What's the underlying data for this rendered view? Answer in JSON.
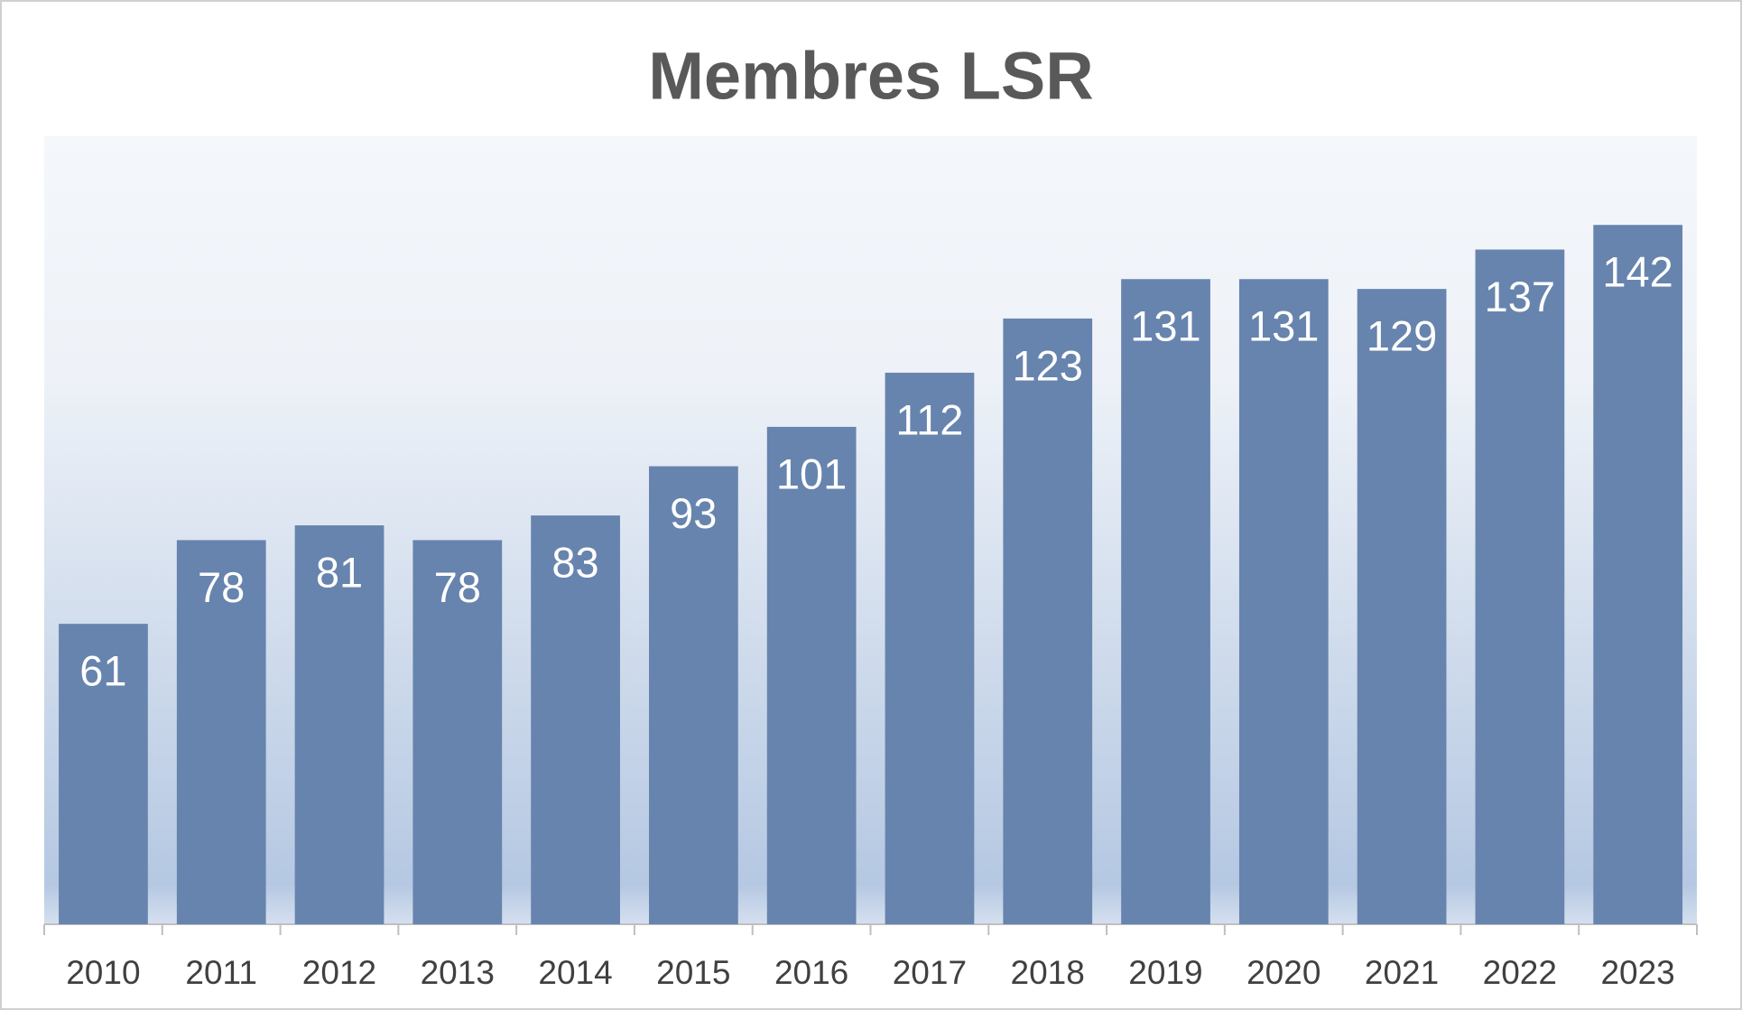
{
  "chart_data": {
    "type": "bar",
    "title": "Membres LSR",
    "categories": [
      "2010",
      "2011",
      "2012",
      "2013",
      "2014",
      "2015",
      "2016",
      "2017",
      "2018",
      "2019",
      "2020",
      "2021",
      "2022",
      "2023"
    ],
    "values": [
      61,
      78,
      81,
      78,
      83,
      93,
      101,
      112,
      123,
      131,
      131,
      129,
      137,
      142
    ],
    "color": "#6784ae",
    "ylim": [
      0,
      160
    ]
  }
}
